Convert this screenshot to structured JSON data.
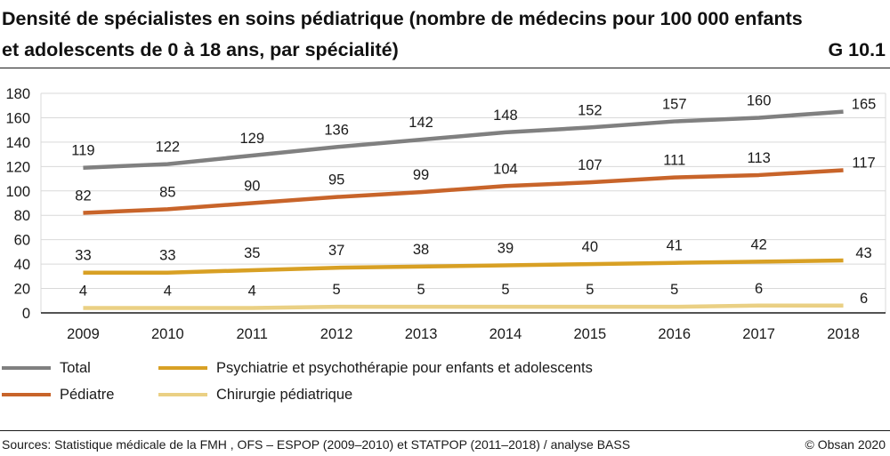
{
  "header": {
    "title": "Densité de spécialistes en soins pédiatrique (nombre de médecins pour 100 000 enfants et adolescents de 0 à 18 ans, par spécialité)",
    "chart_id": "G 10.1"
  },
  "footer": {
    "source": "Sources: Statistique médicale de la FMH , OFS – ESPOP (2009–2010) et STATPOP (2011–2018) / analyse BASS",
    "copyright": "© Obsan 2020"
  },
  "colors": {
    "total": "#808080",
    "pediatre": "#c8642a",
    "psychiatrie": "#d8a024",
    "chirurgie": "#ead084",
    "grid": "#d9d9d9",
    "axis": "#1a1a1a"
  },
  "chart_data": {
    "type": "line",
    "x": [
      "2009",
      "2010",
      "2011",
      "2012",
      "2013",
      "2014",
      "2015",
      "2016",
      "2017",
      "2018"
    ],
    "yticks": [
      "0",
      "20",
      "40",
      "60",
      "80",
      "100",
      "120",
      "140",
      "160",
      "180"
    ],
    "ylim": [
      0,
      180
    ],
    "grid": true,
    "legend_position": "bottom",
    "series": [
      {
        "key": "total",
        "name": "Total",
        "values": [
          119,
          122,
          129,
          136,
          142,
          148,
          152,
          157,
          160,
          165
        ]
      },
      {
        "key": "pediatre",
        "name": "Pédiatre",
        "values": [
          82,
          85,
          90,
          95,
          99,
          104,
          107,
          111,
          113,
          117
        ]
      },
      {
        "key": "psychiatrie",
        "name": "Psychiatrie et psychothérapie pour enfants et adolescents",
        "values": [
          33,
          33,
          35,
          37,
          38,
          39,
          40,
          41,
          42,
          43
        ]
      },
      {
        "key": "chirurgie",
        "name": "Chirurgie pédiatrique",
        "values": [
          4,
          4,
          4,
          5,
          5,
          5,
          5,
          5,
          6,
          6
        ]
      }
    ]
  }
}
